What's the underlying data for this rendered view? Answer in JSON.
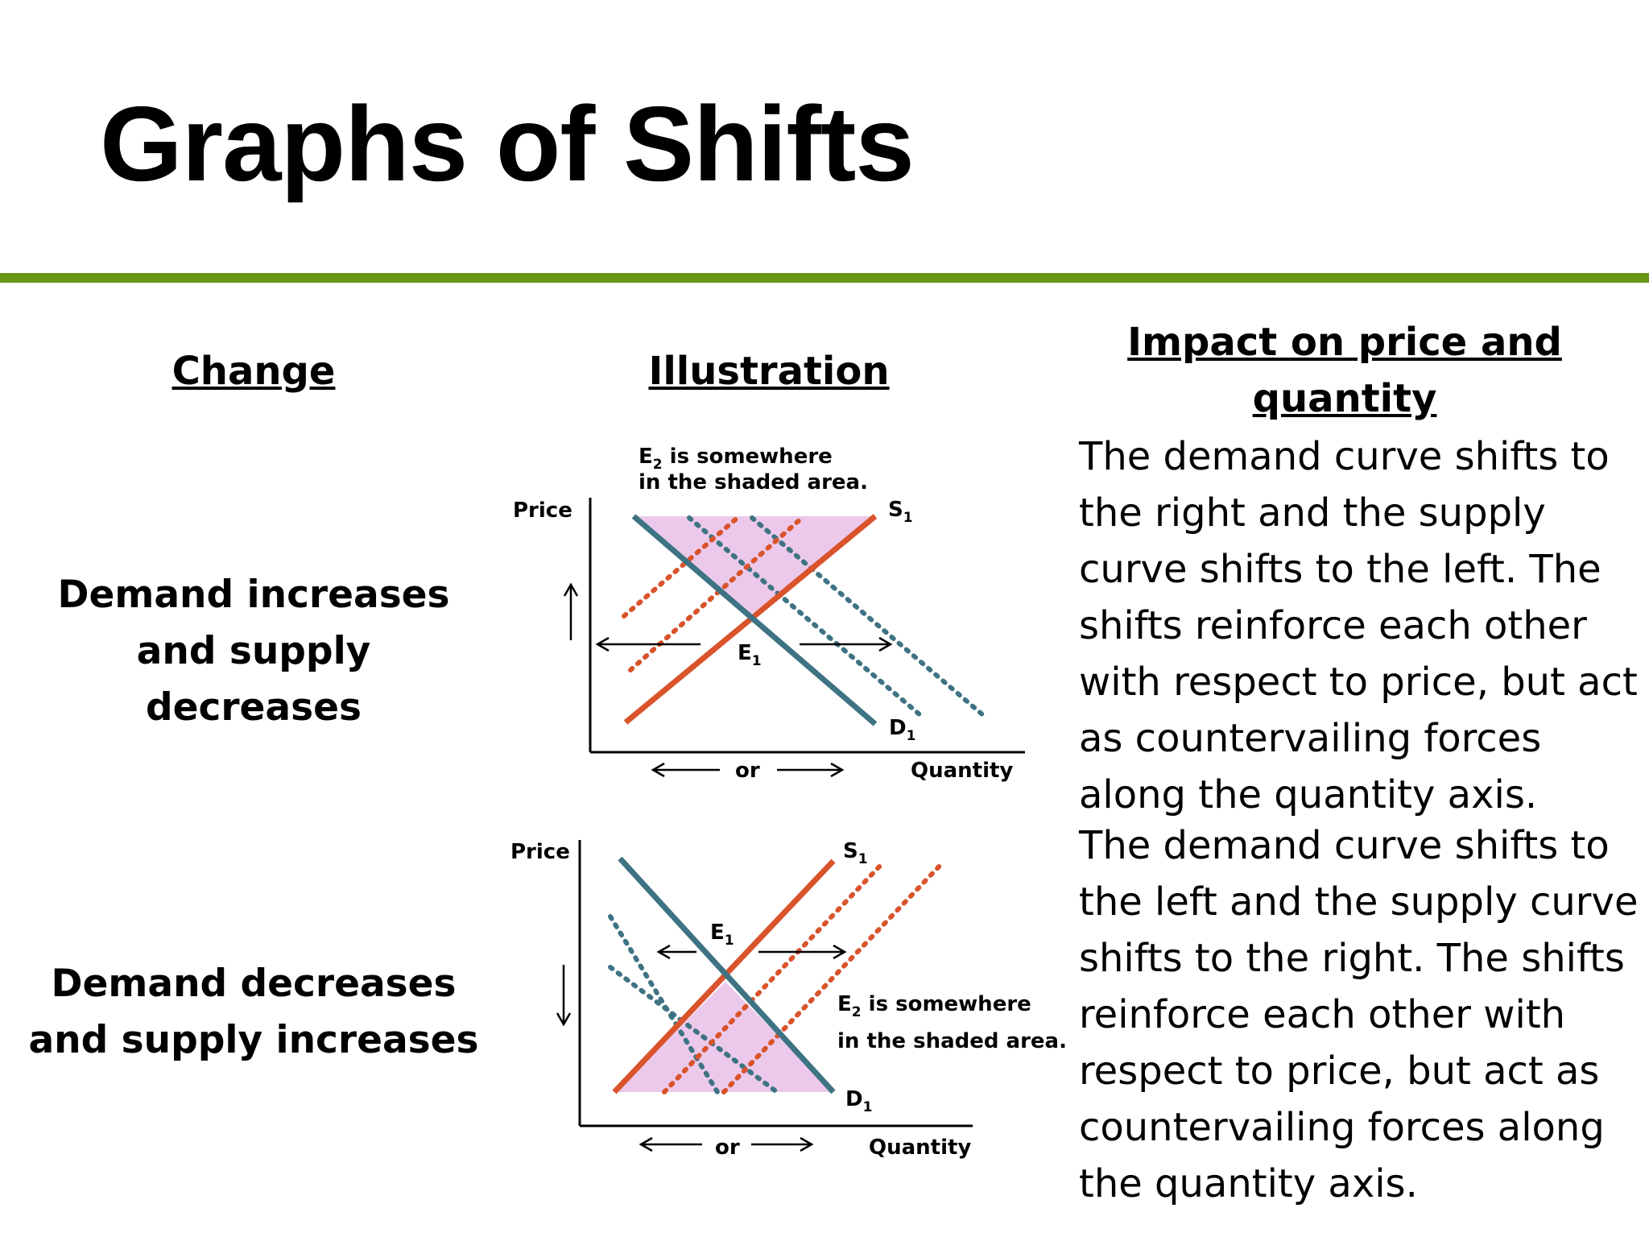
{
  "slide": {
    "title": "Graphs of Shifts",
    "accent_color": "#6a9516"
  },
  "columns": {
    "change": "Change",
    "illustration": "Illustration",
    "impact": "Impact on price and quantity"
  },
  "rows": [
    {
      "change": "Demand increases and supply decreases",
      "impact": "The demand curve shifts to the right and the supply curve shifts to the left. The shifts reinforce each other with respect to price, but act as countervailing forces along the quantity axis.",
      "graph": {
        "price_label": "Price",
        "quantity_label": "Quantity",
        "or_label": "or",
        "note_line1": "E",
        "note_sub": "2",
        "note_rest1": " is somewhere",
        "note_line2": "in the shaded area.",
        "supply_label": "S",
        "supply_sub": "1",
        "demand_label": "D",
        "demand_sub": "1",
        "equilibrium_label": "E",
        "equilibrium_sub": "1",
        "price_arrow": "up-arrow-icon"
      }
    },
    {
      "change": "Demand decreases and supply increases",
      "impact": "The demand curve shifts to the left and the supply curve shifts to the right. The shifts reinforce each other with respect to price, but act as countervailing forces along the quantity axis.",
      "graph": {
        "price_label": "Price",
        "quantity_label": "Quantity",
        "or_label": "or",
        "note_line1": "E",
        "note_sub": "2",
        "note_rest1": " is somewhere",
        "note_line2": "in the shaded area.",
        "supply_label": "S",
        "supply_sub": "1",
        "demand_label": "D",
        "demand_sub": "1",
        "equilibrium_label": "E",
        "equilibrium_sub": "1",
        "price_arrow": "down-arrow-icon"
      }
    }
  ],
  "colors": {
    "supply": "#d9532b",
    "demand": "#3e7383",
    "shade": "#ecc9ea"
  }
}
